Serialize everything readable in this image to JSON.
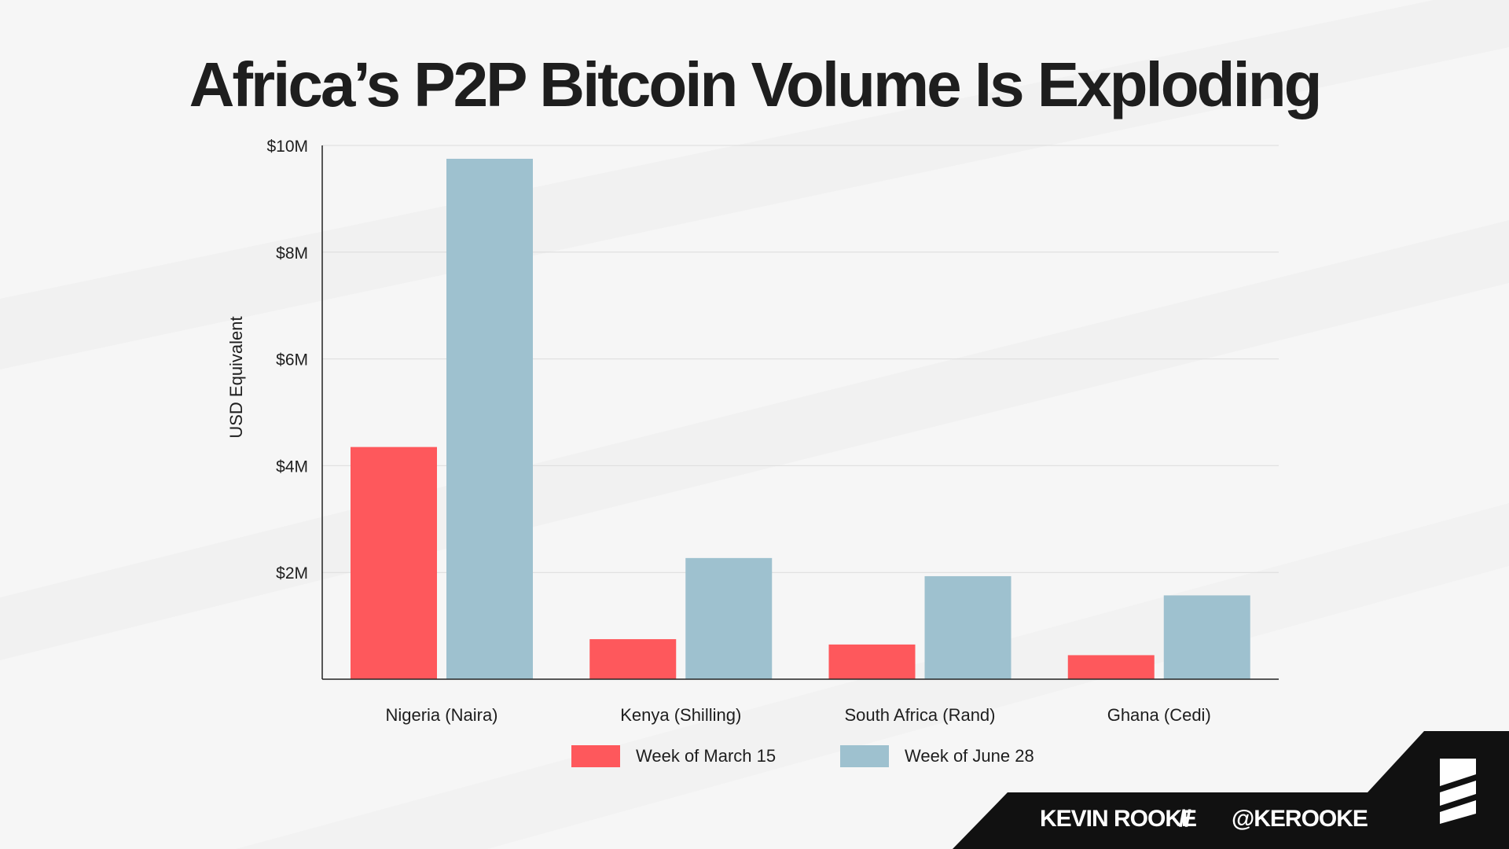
{
  "title": "Africa’s P2P Bitcoin Volume Is Exploding",
  "chart_data": {
    "type": "bar",
    "ylabel": "USD Equivalent",
    "xlabel": "",
    "ylim": [
      0,
      10
    ],
    "yticks": [
      {
        "value": 2,
        "label": "$2M"
      },
      {
        "value": 4,
        "label": "$4M"
      },
      {
        "value": 6,
        "label": "$6M"
      },
      {
        "value": 8,
        "label": "$8M"
      },
      {
        "value": 10,
        "label": "$10M"
      }
    ],
    "grid": true,
    "legend_position": "bottom",
    "categories": [
      "Nigeria (Naira)",
      "Kenya (Shilling)",
      "South Africa (Rand)",
      "Ghana (Cedi)"
    ],
    "series": [
      {
        "name": "Week of March 15",
        "color": "#fe585c",
        "values": [
          4.35,
          0.75,
          0.65,
          0.45
        ]
      },
      {
        "name": "Week of June 28",
        "color": "#9ec1cf",
        "values": [
          9.75,
          2.27,
          1.93,
          1.57
        ]
      }
    ]
  },
  "footer": {
    "author": "KEVIN ROOKE",
    "separator": "//",
    "handle": "@KEROOKE",
    "logo_icon": "striped-logo-icon"
  }
}
